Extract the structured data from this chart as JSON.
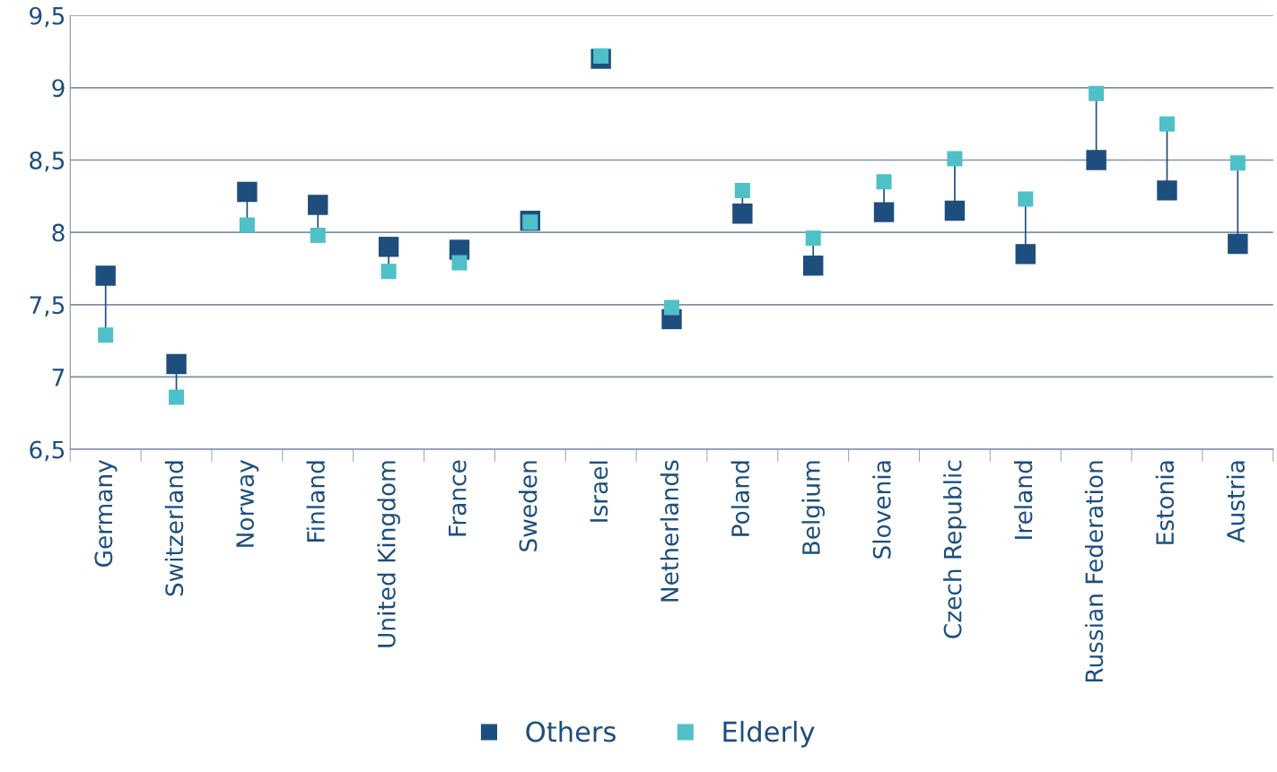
{
  "chart_data": {
    "type": "scatter",
    "categories": [
      "Germany",
      "Switzerland",
      "Norway",
      "Finland",
      "United Kingdom",
      "France",
      "Sweden",
      "Israel",
      "Netherlands",
      "Poland",
      "Belgium",
      "Slovenia",
      "Czech Republic",
      "Ireland",
      "Russian Federation",
      "Estonia",
      "Austria"
    ],
    "series": [
      {
        "name": "Others",
        "color": "#1d4e7e",
        "values": [
          7.7,
          7.09,
          8.28,
          8.19,
          7.9,
          7.88,
          8.08,
          9.2,
          7.4,
          8.13,
          7.77,
          8.14,
          8.15,
          7.85,
          8.5,
          8.29,
          7.92
        ]
      },
      {
        "name": "Elderly",
        "color": "#4fc0c8",
        "values": [
          7.29,
          6.86,
          8.05,
          7.98,
          7.73,
          7.79,
          8.07,
          9.22,
          7.48,
          8.29,
          7.96,
          8.35,
          8.51,
          8.23,
          8.96,
          8.75,
          8.48
        ]
      }
    ],
    "ylim": [
      6.5,
      9.5
    ],
    "yticks": [
      {
        "value": 6.5,
        "label": "6,5"
      },
      7,
      {
        "value": 7.5,
        "label": "7,5"
      },
      8,
      {
        "value": 8.5,
        "label": "8,5"
      },
      9,
      {
        "value": 9.5,
        "label": "9,5"
      }
    ],
    "grid": "y",
    "legend": "bottom",
    "marker": "square"
  }
}
